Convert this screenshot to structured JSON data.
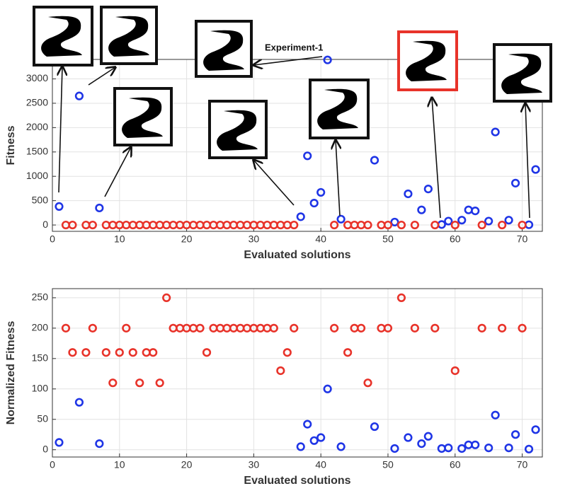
{
  "chart_data": [
    {
      "type": "scatter",
      "xlabel": "Evaluated solutions",
      "ylabel": "Fitness",
      "xlim": [
        0,
        73
      ],
      "ylim": [
        -130,
        3400
      ],
      "xticks": [
        0,
        10,
        20,
        30,
        40,
        50,
        60,
        70
      ],
      "yticks": [
        0,
        500,
        1000,
        1500,
        2000,
        2500,
        3000
      ],
      "grid": true,
      "annotations": [
        "Experiment-1"
      ],
      "series": [
        {
          "color": "#1f35e6",
          "x": [
            1,
            4,
            7,
            37,
            38,
            39,
            40,
            41,
            43,
            48,
            51,
            53,
            55,
            56,
            58,
            59,
            61,
            62,
            63,
            65,
            66,
            68,
            69,
            71,
            72
          ],
          "values": [
            380,
            2650,
            350,
            170,
            1420,
            450,
            670,
            3390,
            120,
            1330,
            60,
            640,
            310,
            740,
            10,
            80,
            100,
            310,
            290,
            80,
            1910,
            100,
            860,
            5,
            1140
          ]
        },
        {
          "color": "#e8332a",
          "x": [
            2,
            3,
            5,
            6,
            8,
            9,
            10,
            11,
            12,
            13,
            14,
            15,
            16,
            17,
            18,
            19,
            20,
            21,
            22,
            23,
            24,
            25,
            26,
            27,
            28,
            29,
            30,
            31,
            32,
            33,
            34,
            35,
            36,
            42,
            44,
            45,
            46,
            47,
            49,
            50,
            52,
            54,
            57,
            60,
            64,
            67,
            70
          ],
          "values": [
            0,
            0,
            0,
            0,
            0,
            0,
            0,
            0,
            0,
            0,
            0,
            0,
            0,
            0,
            0,
            0,
            0,
            0,
            0,
            0,
            0,
            0,
            0,
            0,
            0,
            0,
            0,
            0,
            0,
            0,
            0,
            0,
            0,
            0,
            0,
            0,
            0,
            0,
            0,
            0,
            0,
            0,
            0,
            0,
            0,
            0,
            0
          ]
        }
      ]
    },
    {
      "type": "scatter",
      "xlabel": "Evaluated solutions",
      "ylabel": "Normalized Fitness",
      "xlim": [
        0,
        73
      ],
      "ylim": [
        -12,
        265
      ],
      "xticks": [
        0,
        10,
        20,
        30,
        40,
        50,
        60,
        70
      ],
      "yticks": [
        0,
        50,
        100,
        150,
        200,
        250
      ],
      "grid": true,
      "series": [
        {
          "color": "#1f35e6",
          "x": [
            1,
            4,
            7,
            37,
            38,
            39,
            40,
            41,
            43,
            48,
            51,
            53,
            55,
            56,
            58,
            59,
            61,
            62,
            63,
            65,
            66,
            68,
            69,
            71,
            72
          ],
          "values": [
            12,
            78,
            10,
            5,
            42,
            15,
            20,
            100,
            5,
            38,
            2,
            20,
            10,
            22,
            2,
            3,
            2,
            8,
            8,
            3,
            57,
            3,
            25,
            1,
            33
          ]
        },
        {
          "color": "#e8332a",
          "x": [
            2,
            3,
            5,
            6,
            8,
            9,
            10,
            11,
            12,
            13,
            14,
            15,
            16,
            17,
            18,
            19,
            20,
            21,
            22,
            23,
            24,
            25,
            26,
            27,
            28,
            29,
            30,
            31,
            32,
            33,
            34,
            35,
            36,
            42,
            44,
            45,
            46,
            47,
            49,
            50,
            52,
            54,
            57,
            60,
            64,
            67,
            70
          ],
          "values": [
            200,
            160,
            160,
            200,
            160,
            110,
            160,
            200,
            160,
            110,
            160,
            160,
            110,
            250,
            200,
            200,
            200,
            200,
            200,
            160,
            200,
            200,
            200,
            200,
            200,
            200,
            200,
            200,
            200,
            200,
            130,
            160,
            200,
            200,
            160,
            200,
            200,
            110,
            200,
            200,
            250,
            200,
            200,
            130,
            200,
            200,
            200
          ]
        }
      ]
    }
  ]
}
